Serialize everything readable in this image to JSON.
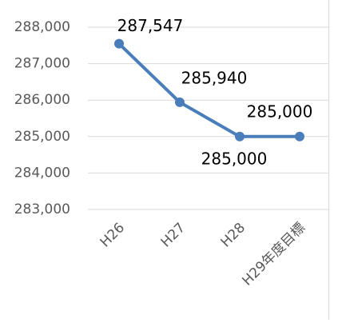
{
  "chart_data": {
    "type": "line",
    "categories": [
      "H26",
      "H27",
      "H28",
      "H29年度目標"
    ],
    "series": [
      {
        "color": "#4a7ebb",
        "values": [
          287547,
          285940,
          285000,
          285000
        ],
        "value_labels": [
          "287,547",
          "285,940",
          "285,000",
          "285,000"
        ]
      }
    ],
    "ylim": [
      283000,
      288000
    ],
    "yticks": [
      {
        "value": 283000,
        "label": "283,000"
      },
      {
        "value": 284000,
        "label": "284,000"
      },
      {
        "value": 285000,
        "label": "285,000"
      },
      {
        "value": 286000,
        "label": "286,000"
      },
      {
        "value": 287000,
        "label": "287,000"
      },
      {
        "value": 288000,
        "label": "288,000"
      }
    ],
    "grid": true
  }
}
